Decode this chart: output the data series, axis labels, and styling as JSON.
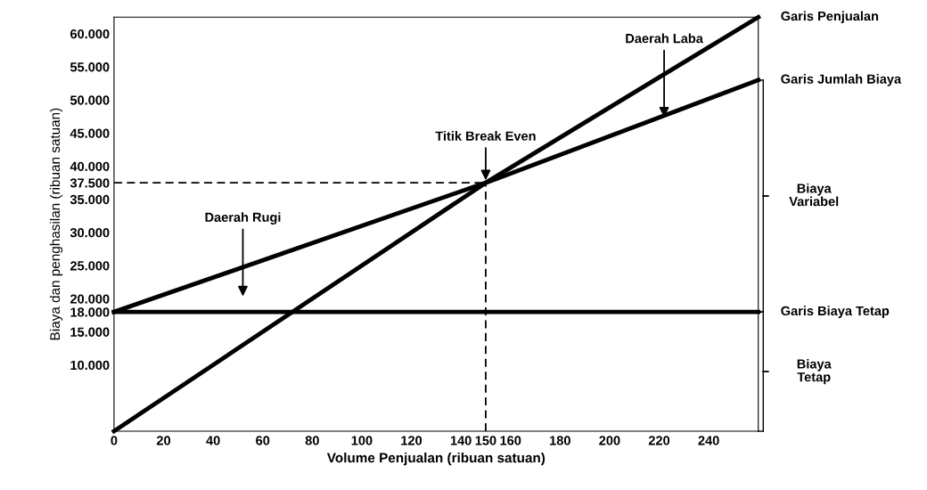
{
  "chart_data": {
    "type": "line",
    "xlabel": "Volume Penjualan (ribuan satuan)",
    "ylabel": "Biaya dan penghasilan (ribuan satuan)",
    "xlim": [
      0,
      260
    ],
    "xticks": [
      0,
      20,
      40,
      60,
      80,
      100,
      120,
      140,
      150,
      160,
      180,
      200,
      220,
      240
    ],
    "ylim": [
      0,
      62500
    ],
    "yticks": [
      {
        "value": 10000,
        "label": "10.000"
      },
      {
        "value": 15000,
        "label": "15.000"
      },
      {
        "value": 18000,
        "label": "18.000"
      },
      {
        "value": 20000,
        "label": "20.000"
      },
      {
        "value": 25000,
        "label": "25.000"
      },
      {
        "value": 30000,
        "label": "30.000"
      },
      {
        "value": 35000,
        "label": "35.000"
      },
      {
        "value": 37500,
        "label": "37.500"
      },
      {
        "value": 40000,
        "label": "40.000"
      },
      {
        "value": 45000,
        "label": "45.000"
      },
      {
        "value": 50000,
        "label": "50.000"
      },
      {
        "value": 55000,
        "label": "55.000"
      },
      {
        "value": 60000,
        "label": "60.000"
      }
    ],
    "grid": false,
    "legend": false,
    "series": [
      {
        "color": "#000000",
        "x": [
          0,
          150,
          260
        ],
        "values": [
          0,
          37500,
          62500
        ]
      },
      {
        "color": "#000000",
        "x": [
          0,
          150,
          260
        ],
        "values": [
          18000,
          37500,
          53000
        ]
      },
      {
        "color": "#000000",
        "x": [
          0,
          260
        ],
        "values": [
          18000,
          18000
        ]
      },
      {
        "color": "#000000",
        "x": [
          0,
          150
        ],
        "values": [
          37500,
          37500
        ],
        "line_style": "dashed"
      },
      {
        "color": "#000000",
        "x": [
          150,
          150
        ],
        "values": [
          0,
          37500
        ],
        "line_style": "dashed"
      }
    ],
    "annotations": [
      {
        "text": "Daerah Laba",
        "x": 222,
        "y": 47000
      },
      {
        "text": "Titik Break Even",
        "x": 150,
        "y": 37500
      },
      "Daerah Rugi",
      {
        "text": "Garis Penjualan",
        "x": 260,
        "y": 62500
      },
      {
        "text": "Garis Jumlah Biaya",
        "x": 260,
        "y": 53000
      },
      {
        "text": "Garis Biaya Tetap",
        "x": 260,
        "y": 18000
      },
      "Biaya\nVariabel",
      "Biaya\nTetap"
    ]
  }
}
